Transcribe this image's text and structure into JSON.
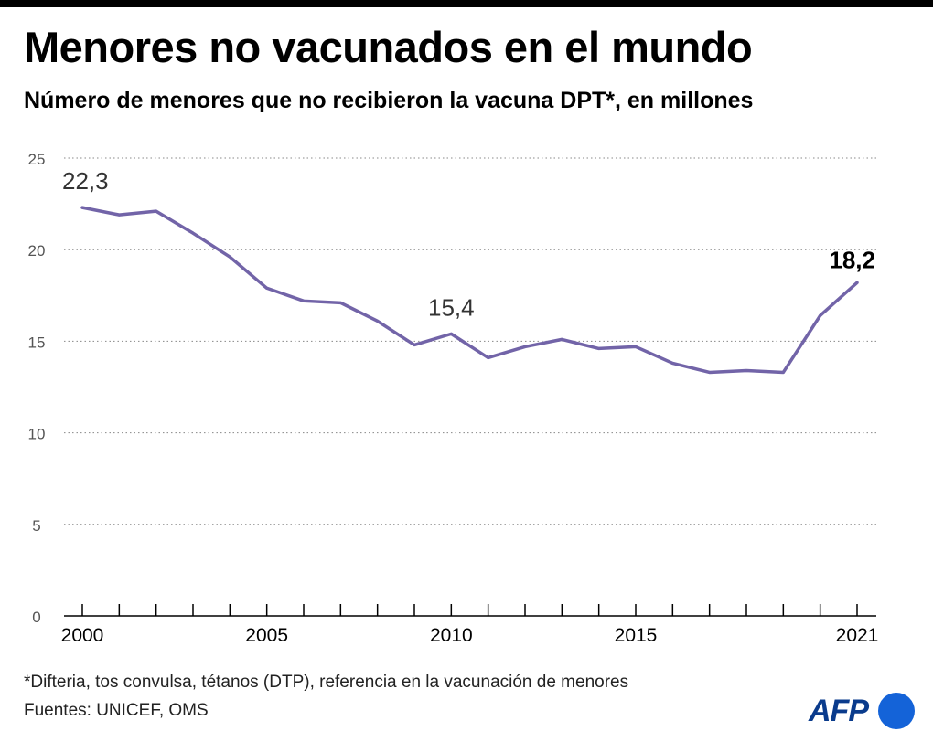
{
  "header": {
    "title": "Menores no vacunados en el mundo",
    "subtitle": "Número de menores que no recibieron la vacuna DPT*, en millones"
  },
  "chart_data": {
    "type": "line",
    "title": "Menores no vacunados en el mundo",
    "subtitle": "Número de menores que no recibieron la vacuna DPT*, en millones",
    "xlabel": "",
    "ylabel": "",
    "x": [
      2000,
      2001,
      2002,
      2003,
      2004,
      2005,
      2006,
      2007,
      2008,
      2009,
      2010,
      2011,
      2012,
      2013,
      2014,
      2015,
      2016,
      2017,
      2018,
      2019,
      2020,
      2021
    ],
    "series": [
      {
        "values": [
          22.3,
          21.9,
          22.1,
          20.9,
          19.6,
          17.9,
          17.2,
          17.1,
          16.1,
          14.8,
          15.4,
          14.1,
          14.7,
          15.1,
          14.6,
          14.7,
          13.8,
          13.3,
          13.4,
          13.3,
          16.4,
          18.2
        ],
        "color": "#7264a8"
      }
    ],
    "xlim": [
      2000,
      2021
    ],
    "ylim": [
      0,
      25
    ],
    "y_ticks": [
      0,
      5,
      10,
      15,
      20,
      25
    ],
    "x_tick_labels": [
      2000,
      2005,
      2010,
      2015,
      2021
    ],
    "grid": "horizontal-dotted",
    "annotations": [
      {
        "x": 2000,
        "y": 22.3,
        "text": "22,3",
        "bold": false
      },
      {
        "x": 2010,
        "y": 15.4,
        "text": "15,4",
        "bold": false
      },
      {
        "x": 2021,
        "y": 18.2,
        "text": "18,2",
        "bold": true
      }
    ]
  },
  "footnote": "*Difteria, tos convulsa, tétanos (DTP), referencia en la vacunación de menores",
  "source": "Fuentes: UNICEF, OMS",
  "logo": {
    "text": "AFP"
  },
  "colors": {
    "line": "#7264a8",
    "grid": "#888888",
    "logo": "#1463d8"
  }
}
